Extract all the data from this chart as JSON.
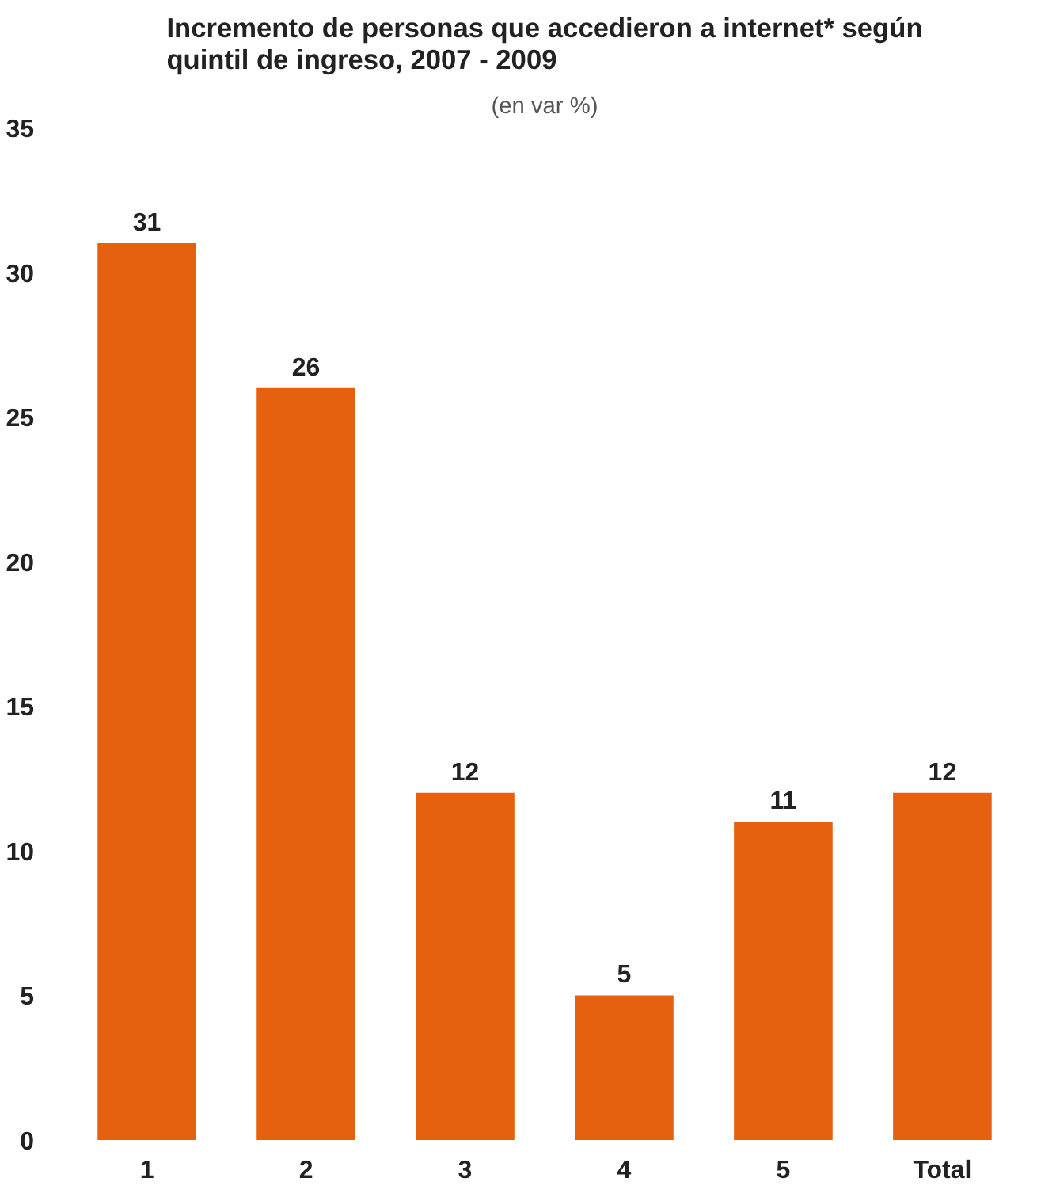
{
  "chart_data": {
    "type": "bar",
    "title": "Incremento de personas que accedieron a internet* según quintil de ingreso, 2007 - 2009",
    "subtitle": "(en var %)",
    "categories": [
      "1",
      "2",
      "3",
      "4",
      "5",
      "Total"
    ],
    "values": [
      31,
      26,
      12,
      5,
      11,
      12
    ],
    "color": "#e5600f",
    "ylim": [
      0,
      35
    ],
    "yticks": [
      0,
      5,
      10,
      15,
      20,
      25,
      30,
      35
    ],
    "data_labels": true
  }
}
